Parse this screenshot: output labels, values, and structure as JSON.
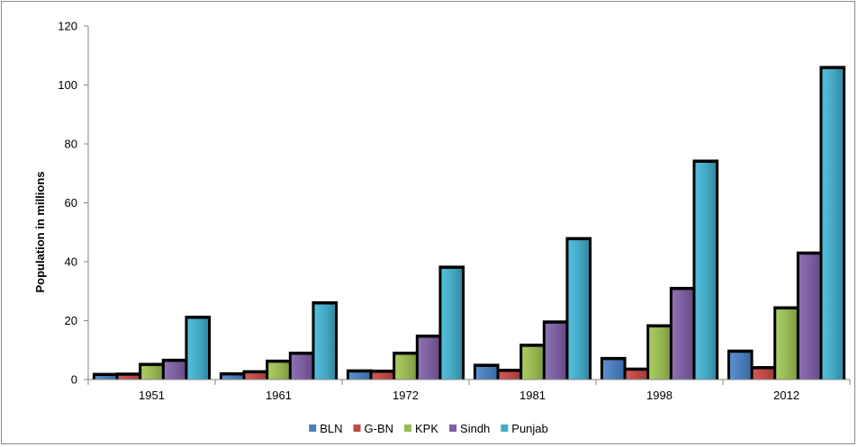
{
  "chart_data": {
    "type": "bar",
    "title": "",
    "xlabel": "",
    "ylabel": "Population in millions",
    "ylim": [
      0,
      120
    ],
    "yticks": [
      0,
      20,
      40,
      60,
      80,
      100,
      120
    ],
    "grid": false,
    "legend_position": "bottom",
    "categories": [
      "1951",
      "1961",
      "1972",
      "1981",
      "1998",
      "2012"
    ],
    "series": [
      {
        "name": "BLN",
        "color": "#4a7ebb",
        "values": [
          1.2,
          1.4,
          2.4,
          4.3,
          6.6,
          9.1
        ]
      },
      {
        "name": "G-BN",
        "color": "#be4b48",
        "values": [
          1.3,
          2.1,
          2.3,
          2.6,
          3.0,
          3.5
        ]
      },
      {
        "name": "KPK",
        "color": "#98b954",
        "values": [
          4.6,
          5.7,
          8.4,
          11.1,
          17.7,
          23.8
        ]
      },
      {
        "name": "Sindh",
        "color": "#7d60a0",
        "values": [
          6.0,
          8.4,
          14.2,
          19.0,
          30.4,
          42.4
        ]
      },
      {
        "name": "Punjab",
        "color": "#46aac5",
        "values": [
          20.6,
          25.5,
          37.6,
          47.3,
          73.6,
          105.4
        ]
      }
    ]
  }
}
